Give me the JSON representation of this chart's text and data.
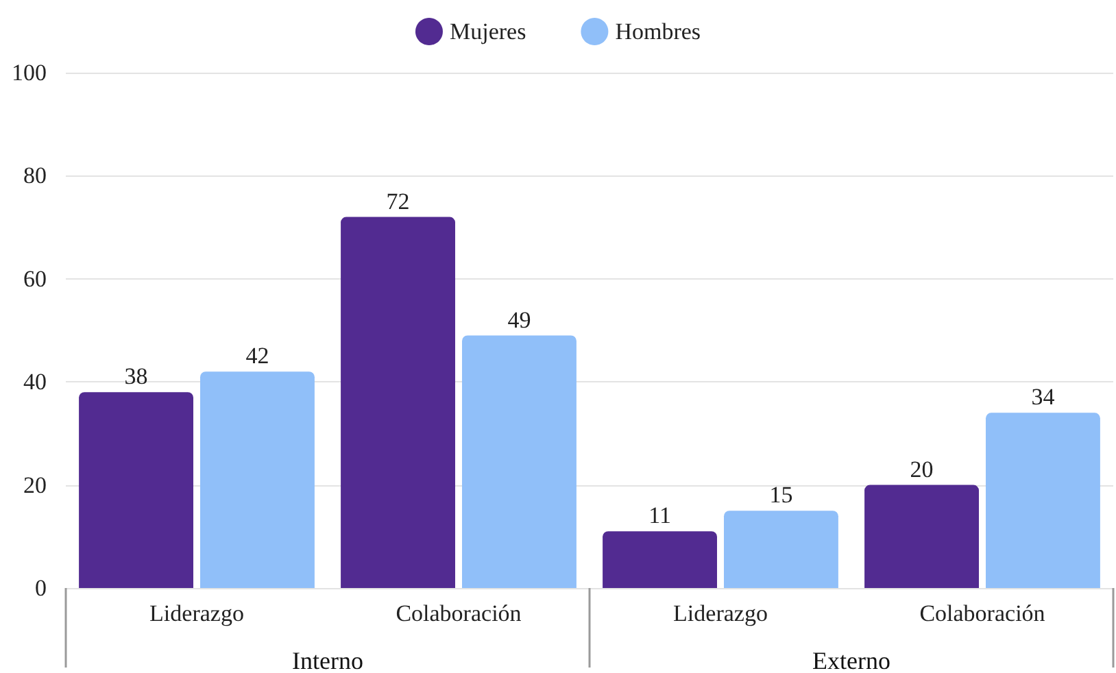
{
  "chart_data": {
    "type": "bar",
    "categories": [
      "Liderazgo",
      "Colaboración",
      "Liderazgo",
      "Colaboración"
    ],
    "series": [
      {
        "name": "Mujeres",
        "color": "#522b91",
        "values": [
          38,
          72,
          11,
          20
        ]
      },
      {
        "name": "Hombres",
        "color": "#90bff9",
        "values": [
          42,
          49,
          15,
          34
        ]
      }
    ],
    "annotations": [
      "Interno",
      "Externo"
    ],
    "ylim": [
      0,
      100
    ],
    "yticks": [
      0,
      20,
      40,
      60,
      80,
      100
    ],
    "grid": "y",
    "legend": "top",
    "data_labels": true
  }
}
